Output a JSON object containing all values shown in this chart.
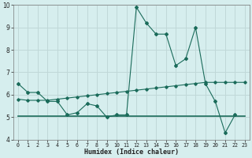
{
  "xlabel": "Humidex (Indice chaleur)",
  "x": [
    0,
    1,
    2,
    3,
    4,
    5,
    6,
    7,
    8,
    9,
    10,
    11,
    12,
    13,
    14,
    15,
    16,
    17,
    18,
    19,
    20,
    21,
    22,
    23
  ],
  "line1": [
    6.5,
    6.1,
    6.1,
    5.7,
    5.7,
    5.1,
    5.2,
    5.6,
    5.5,
    5.0,
    5.1,
    5.1,
    9.9,
    9.2,
    8.7,
    8.7,
    7.3,
    7.6,
    9.0,
    6.5,
    5.7,
    4.3,
    5.1,
    null
  ],
  "line2": [
    5.8,
    5.75,
    5.75,
    5.75,
    5.8,
    5.85,
    5.9,
    5.95,
    6.0,
    6.05,
    6.1,
    6.15,
    6.2,
    6.25,
    6.3,
    6.35,
    6.4,
    6.45,
    6.5,
    6.55,
    6.55,
    6.55,
    6.55,
    6.55
  ],
  "line3_y": [
    5.05,
    5.05
  ],
  "line3_x": [
    0,
    23
  ],
  "main_color": "#1a6b5a",
  "bg_color": "#d6eeee",
  "grid_color": "#c0d8d8",
  "ylim": [
    4,
    10
  ],
  "xlim": [
    -0.5,
    23.5
  ],
  "yticks": [
    4,
    5,
    6,
    7,
    8,
    9,
    10
  ],
  "xticks": [
    0,
    1,
    2,
    3,
    4,
    5,
    6,
    7,
    8,
    9,
    10,
    11,
    12,
    13,
    14,
    15,
    16,
    17,
    18,
    19,
    20,
    21,
    22,
    23
  ]
}
